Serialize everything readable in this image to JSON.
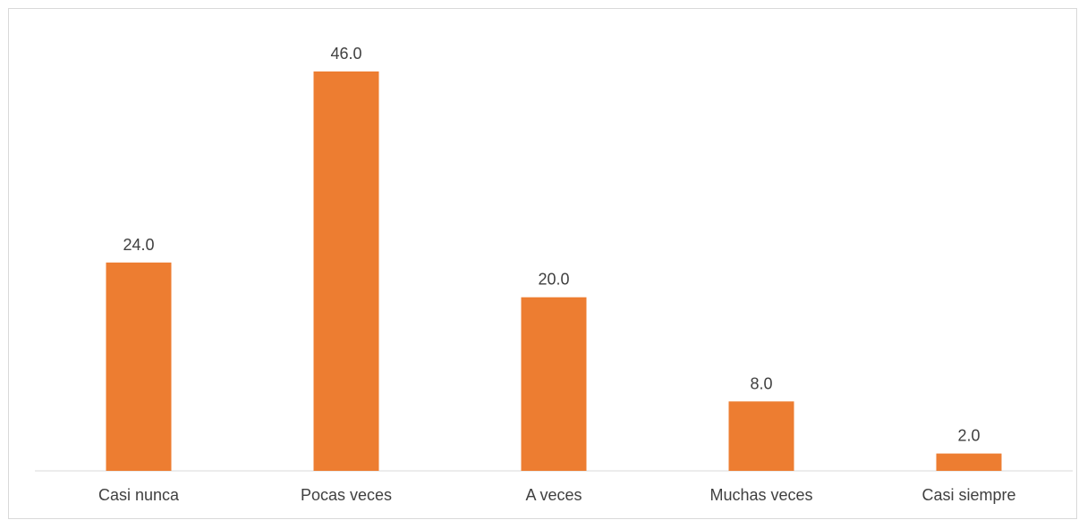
{
  "chart_data": {
    "type": "bar",
    "categories": [
      "Casi nunca",
      "Pocas veces",
      "A veces",
      "Muchas veces",
      "Casi siempre"
    ],
    "values": [
      24.0,
      46.0,
      20.0,
      8.0,
      2.0
    ],
    "value_labels": [
      "24.0",
      "46.0",
      "20.0",
      "8.0",
      "2.0"
    ],
    "title": "",
    "xlabel": "",
    "ylabel": "",
    "ylim": [
      0,
      46
    ],
    "grid": false,
    "legend": "none",
    "colors": {
      "bar": "#ED7D31",
      "axis": "#d9d9d9",
      "text": "#404040"
    }
  }
}
